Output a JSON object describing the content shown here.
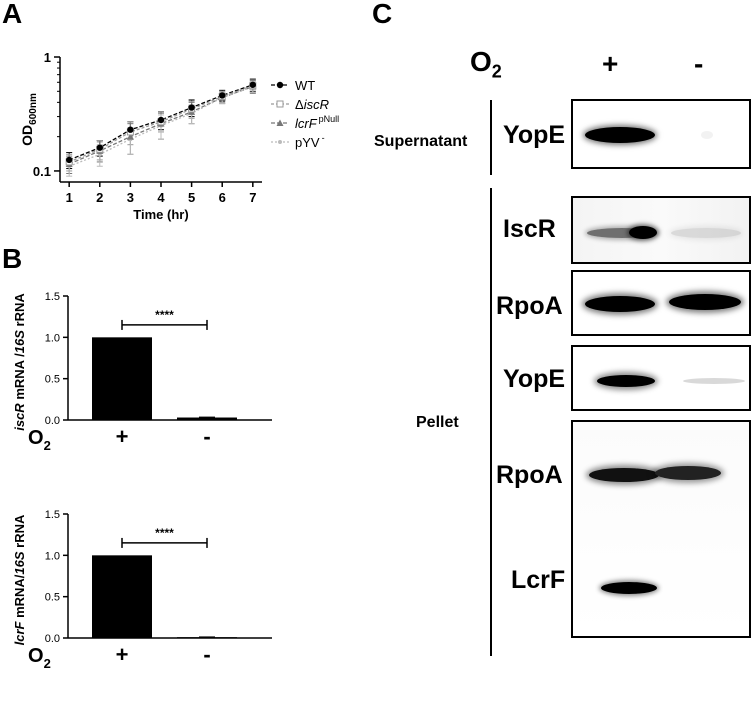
{
  "panels": {
    "a": "A",
    "b": "B",
    "c": "C"
  },
  "chart_data": [
    {
      "type": "line",
      "xlabel": "Time (hr)",
      "ylabel": "OD600nm",
      "ylabel_main": "OD",
      "ylabel_sub": "600nm",
      "yscale": "log",
      "ylim": [
        0.08,
        1
      ],
      "xlim": [
        0.7,
        7.3
      ],
      "x": [
        1,
        2,
        3,
        4,
        5,
        6,
        7
      ],
      "x_ticks": [
        "1",
        "2",
        "3",
        "4",
        "5",
        "6",
        "7"
      ],
      "y_ticks": [
        "0.1",
        "1"
      ],
      "series": [
        {
          "name": "WT",
          "values": [
            0.125,
            0.16,
            0.23,
            0.28,
            0.36,
            0.46,
            0.57
          ],
          "err": [
            0.02,
            0.025,
            0.04,
            0.05,
            0.06,
            0.05,
            0.07
          ],
          "color": "#000000",
          "marker": "circle-filled",
          "dash": "4,2"
        },
        {
          "name": "ΔiscR",
          "values": [
            0.12,
            0.155,
            0.22,
            0.27,
            0.35,
            0.45,
            0.56
          ],
          "err": [
            0.02,
            0.03,
            0.05,
            0.05,
            0.06,
            0.05,
            0.07
          ],
          "color": "#999999",
          "marker": "square-open",
          "dash": "3,2"
        },
        {
          "name": "lcrF pNull",
          "values": [
            0.115,
            0.15,
            0.2,
            0.26,
            0.33,
            0.44,
            0.55
          ],
          "err": [
            0.02,
            0.03,
            0.06,
            0.07,
            0.07,
            0.05,
            0.07
          ],
          "color": "#777777",
          "marker": "triangle",
          "dash": "4,2"
        },
        {
          "name": "pYV-",
          "values": [
            0.11,
            0.14,
            0.19,
            0.25,
            0.32,
            0.44,
            0.55
          ],
          "err": [
            0.02,
            0.03,
            0.05,
            0.06,
            0.06,
            0.05,
            0.06
          ],
          "color": "#bbbbbb",
          "marker": "circle-small",
          "dash": "2,2"
        }
      ],
      "legend": [
        {
          "main": "WT"
        },
        {
          "prefix": "Δ",
          "main": "iscR",
          "italic": true
        },
        {
          "main": "lcrF",
          "italic": true,
          "sup": "pNull"
        },
        {
          "main": "pYV",
          "sup": "-"
        }
      ],
      "legend_placement": "right"
    },
    {
      "type": "bar",
      "categories": [
        "+",
        "-"
      ],
      "values": [
        1.0,
        0.03
      ],
      "error": [
        0.0,
        0.005
      ],
      "ylim": [
        0,
        1.5
      ],
      "y_ticks": [
        "0.0",
        "0.5",
        "1.0",
        "1.5"
      ],
      "ylabel_italic": "iscR",
      "ylabel_mid": " mRNA /",
      "ylabel_italic2": "16S",
      "ylabel_end": " rRNA",
      "xlabel_main": "O",
      "xlabel_sub": "2",
      "significance": "****"
    },
    {
      "type": "bar",
      "categories": [
        "+",
        "-"
      ],
      "values": [
        1.0,
        0.01
      ],
      "error": [
        0.0,
        0.003
      ],
      "ylim": [
        0,
        1.5
      ],
      "y_ticks": [
        "0.0",
        "0.5",
        "1.0",
        "1.5"
      ],
      "ylabel_italic": "lcrF",
      "ylabel_mid": " mRNA/",
      "ylabel_italic2": "16S",
      "ylabel_end": " rRNA",
      "xlabel_main": "O",
      "xlabel_sub": "2",
      "significance": "****"
    }
  ],
  "blot": {
    "o2_main": "O",
    "o2_sub": "2",
    "plus": "+",
    "minus": "-",
    "supernatant": "Supernatant",
    "pellet": "Pellet",
    "labels": {
      "yope_sup": "YopE",
      "iscr": "IscR",
      "rpoa1": "RpoA",
      "yope_pel": "YopE",
      "rpoa2": "RpoA",
      "lcrf": "LcrF"
    }
  }
}
